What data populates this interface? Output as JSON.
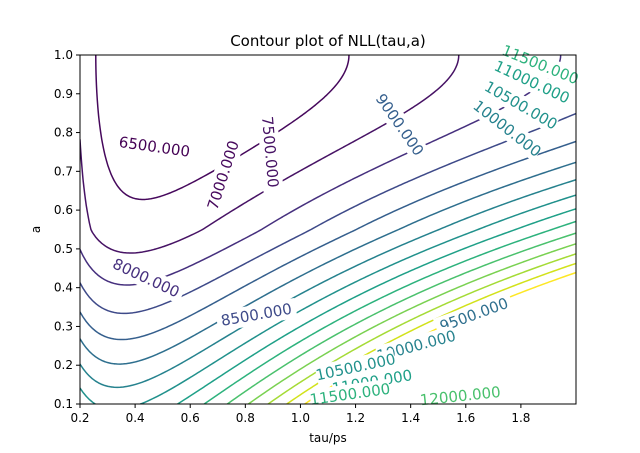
{
  "chart_data": {
    "type": "contour",
    "title": "Contour plot of NLL(tau,a)",
    "xlabel": "tau/ps",
    "ylabel": "a",
    "xlim": [
      0.2,
      2.0
    ],
    "ylim": [
      0.1,
      1.0
    ],
    "xticks": [
      "0.2",
      "0.4",
      "0.6",
      "0.8",
      "1.0",
      "1.2",
      "1.4",
      "1.6",
      "1.8"
    ],
    "yticks": [
      "0.1",
      "0.2",
      "0.3",
      "0.4",
      "0.5",
      "0.6",
      "0.7",
      "0.8",
      "0.9",
      "1.0"
    ],
    "levels": [
      {
        "value": 6500,
        "label": "6500.000",
        "color": "#440154"
      },
      {
        "value": 7000,
        "label": "7000.000",
        "color": "#46085c"
      },
      {
        "value": 7500,
        "label": "7500.000",
        "color": "#471365"
      },
      {
        "value": 8000,
        "label": "8000.000",
        "color": "#46307e"
      },
      {
        "value": 8500,
        "label": "8500.000",
        "color": "#3e4a89"
      },
      {
        "value": 9000,
        "label": "9000.000",
        "color": "#355f8d"
      },
      {
        "value": 9500,
        "label": "9500.000",
        "color": "#2e6f8e"
      },
      {
        "value": 10000,
        "label": "10000.000",
        "color": "#26828e"
      },
      {
        "value": 10500,
        "label": "10500.000",
        "color": "#21918c"
      },
      {
        "value": 11000,
        "label": "11000.000",
        "color": "#1fa088"
      },
      {
        "value": 11500,
        "label": "11500.000",
        "color": "#2db27d"
      },
      {
        "value": 12000,
        "label": "12000.000",
        "color": "#4ac16d"
      },
      {
        "value": 12500,
        "label": "",
        "color": "#7ad151"
      },
      {
        "value": 13000,
        "label": "",
        "color": "#a5db36"
      },
      {
        "value": 13500,
        "label": "",
        "color": "#d2e21b"
      },
      {
        "value": 14000,
        "label": "",
        "color": "#fde725"
      }
    ],
    "contour_labels": [
      {
        "label": "6500.000",
        "x": 0.47,
        "y": 0.763,
        "rotate": 8,
        "color": "#440154"
      },
      {
        "label": "7000.000",
        "x": 0.72,
        "y": 0.69,
        "rotate": -72,
        "color": "#46085c"
      },
      {
        "label": "7500.000",
        "x": 0.89,
        "y": 0.75,
        "rotate": 85,
        "color": "#471365"
      },
      {
        "label": "8000.000",
        "x": 0.44,
        "y": 0.425,
        "rotate": 25,
        "color": "#46307e"
      },
      {
        "label": "8500.000",
        "x": 0.84,
        "y": 0.33,
        "rotate": -10,
        "color": "#3e4a89"
      },
      {
        "label": "9000.000",
        "x": 1.36,
        "y": 0.82,
        "rotate": 55,
        "color": "#355f8d"
      },
      {
        "label": "9500.000",
        "x": 1.63,
        "y": 0.33,
        "rotate": -20,
        "color": "#2e6f8e"
      },
      {
        "label": "10000.000",
        "x": 1.75,
        "y": 0.81,
        "rotate": 38,
        "color": "#26828e"
      },
      {
        "label": "10000.000",
        "x": 1.42,
        "y": 0.25,
        "rotate": -15,
        "color": "#26828e"
      },
      {
        "label": "10500.000",
        "x": 1.8,
        "y": 0.87,
        "rotate": 30,
        "color": "#21918c"
      },
      {
        "label": "10500.000",
        "x": 1.2,
        "y": 0.195,
        "rotate": -12,
        "color": "#21918c"
      },
      {
        "label": "11000.000",
        "x": 1.84,
        "y": 0.93,
        "rotate": 25,
        "color": "#1fa088"
      },
      {
        "label": "11000.000",
        "x": 1.26,
        "y": 0.157,
        "rotate": -10,
        "color": "#1fa088"
      },
      {
        "label": "11500.000",
        "x": 1.87,
        "y": 0.975,
        "rotate": 22,
        "color": "#2db27d"
      },
      {
        "label": "11500.000",
        "x": 1.18,
        "y": 0.125,
        "rotate": -8,
        "color": "#2db27d"
      },
      {
        "label": "12000.000",
        "x": 1.58,
        "y": 0.12,
        "rotate": -6,
        "color": "#4ac16d"
      }
    ]
  }
}
